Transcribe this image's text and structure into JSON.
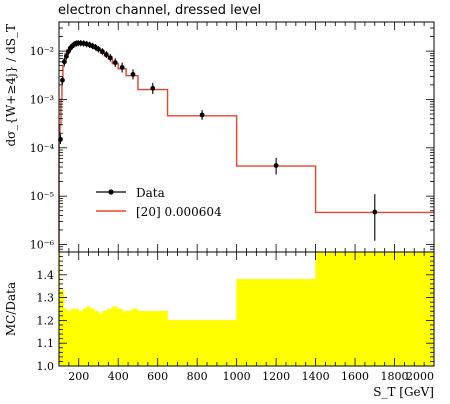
{
  "title": "electron channel, dressed level",
  "chart_data": [
    {
      "type": "line",
      "panel": "main",
      "ylabel": "dσ_{W+≥4j} / dS_T",
      "y_scale": "log",
      "ylim": [
        7e-07,
        0.04
      ],
      "xlim": [
        100,
        2000
      ],
      "yticks": [
        {
          "value": 1e-06,
          "label": "10⁻⁶"
        },
        {
          "value": 1e-05,
          "label": "10⁻⁵"
        },
        {
          "value": 0.0001,
          "label": "10⁻⁴"
        },
        {
          "value": 0.001,
          "label": "10⁻³"
        },
        {
          "value": 0.01,
          "label": "10⁻²"
        }
      ],
      "legend": {
        "placement": "lower-left",
        "entries": [
          "Data",
          "[20] 0.000604"
        ]
      },
      "series": [
        {
          "name": "Data",
          "style": "points",
          "color": "#000000",
          "points": [
            {
              "x": 107.5,
              "y": 0.00015,
              "ylo": 0.00012,
              "yhi": 0.00019
            },
            {
              "x": 117.5,
              "y": 0.0025,
              "ylo": 0.0021,
              "yhi": 0.003
            },
            {
              "x": 127.5,
              "y": 0.006,
              "ylo": 0.005,
              "yhi": 0.0072
            },
            {
              "x": 137.5,
              "y": 0.0078,
              "ylo": 0.0066,
              "yhi": 0.0093
            },
            {
              "x": 147.5,
              "y": 0.0098,
              "ylo": 0.0084,
              "yhi": 0.0115
            },
            {
              "x": 157.5,
              "y": 0.0115,
              "ylo": 0.0099,
              "yhi": 0.0134
            },
            {
              "x": 167.5,
              "y": 0.0128,
              "ylo": 0.011,
              "yhi": 0.0149
            },
            {
              "x": 177.5,
              "y": 0.0138,
              "ylo": 0.0119,
              "yhi": 0.016
            },
            {
              "x": 187.5,
              "y": 0.0144,
              "ylo": 0.0124,
              "yhi": 0.0167
            },
            {
              "x": 197.5,
              "y": 0.0146,
              "ylo": 0.0126,
              "yhi": 0.0169
            },
            {
              "x": 210,
              "y": 0.0146,
              "ylo": 0.0126,
              "yhi": 0.0169
            },
            {
              "x": 225,
              "y": 0.0144,
              "ylo": 0.0124,
              "yhi": 0.0167
            },
            {
              "x": 240,
              "y": 0.014,
              "ylo": 0.012,
              "yhi": 0.0163
            },
            {
              "x": 255,
              "y": 0.0135,
              "ylo": 0.0116,
              "yhi": 0.0157
            },
            {
              "x": 270,
              "y": 0.0128,
              "ylo": 0.011,
              "yhi": 0.0149
            },
            {
              "x": 285,
              "y": 0.012,
              "ylo": 0.0103,
              "yhi": 0.014
            },
            {
              "x": 300,
              "y": 0.011,
              "ylo": 0.0094,
              "yhi": 0.0128
            },
            {
              "x": 320,
              "y": 0.0098,
              "ylo": 0.0084,
              "yhi": 0.0115
            },
            {
              "x": 340,
              "y": 0.0085,
              "ylo": 0.0072,
              "yhi": 0.01
            },
            {
              "x": 360,
              "y": 0.0073,
              "ylo": 0.0061,
              "yhi": 0.0087
            },
            {
              "x": 385,
              "y": 0.0058,
              "ylo": 0.0047,
              "yhi": 0.0071
            },
            {
              "x": 420,
              "y": 0.0046,
              "ylo": 0.0036,
              "yhi": 0.0058
            },
            {
              "x": 475,
              "y": 0.0033,
              "ylo": 0.0026,
              "yhi": 0.0042
            },
            {
              "x": 575,
              "y": 0.0017,
              "ylo": 0.0013,
              "yhi": 0.0022
            },
            {
              "x": 825,
              "y": 0.00048,
              "ylo": 0.00038,
              "yhi": 0.0006
            },
            {
              "x": 1200,
              "y": 4.3e-05,
              "ylo": 2.8e-05,
              "yhi": 6.2e-05
            },
            {
              "x": 1700,
              "y": 4.7e-06,
              "ylo": 1.2e-06,
              "yhi": 1.1e-05
            }
          ]
        },
        {
          "name": "[20] 0.000604",
          "style": "histogram",
          "color": "#e8432a",
          "bins": [
            {
              "x0": 100,
              "x1": 105,
              "y": 0.00014
            },
            {
              "x0": 105,
              "x1": 110,
              "y": 0.0003
            },
            {
              "x0": 110,
              "x1": 115,
              "y": 0.001
            },
            {
              "x0": 115,
              "x1": 120,
              "y": 0.0025
            },
            {
              "x0": 120,
              "x1": 125,
              "y": 0.0048
            },
            {
              "x0": 125,
              "x1": 130,
              "y": 0.0068
            },
            {
              "x0": 130,
              "x1": 140,
              "y": 0.0088
            },
            {
              "x0": 140,
              "x1": 150,
              "y": 0.0105
            },
            {
              "x0": 150,
              "x1": 160,
              "y": 0.012
            },
            {
              "x0": 160,
              "x1": 170,
              "y": 0.0133
            },
            {
              "x0": 170,
              "x1": 180,
              "y": 0.0142
            },
            {
              "x0": 180,
              "x1": 190,
              "y": 0.0147
            },
            {
              "x0": 190,
              "x1": 205,
              "y": 0.0148
            },
            {
              "x0": 205,
              "x1": 215,
              "y": 0.0146
            },
            {
              "x0": 215,
              "x1": 230,
              "y": 0.0142
            },
            {
              "x0": 230,
              "x1": 245,
              "y": 0.0137
            },
            {
              "x0": 245,
              "x1": 260,
              "y": 0.013
            },
            {
              "x0": 260,
              "x1": 275,
              "y": 0.0122
            },
            {
              "x0": 275,
              "x1": 290,
              "y": 0.0113
            },
            {
              "x0": 290,
              "x1": 310,
              "y": 0.0103
            },
            {
              "x0": 310,
              "x1": 330,
              "y": 0.0091
            },
            {
              "x0": 330,
              "x1": 350,
              "y": 0.0079
            },
            {
              "x0": 350,
              "x1": 370,
              "y": 0.0068
            },
            {
              "x0": 370,
              "x1": 400,
              "y": 0.0055
            },
            {
              "x0": 400,
              "x1": 440,
              "y": 0.0043
            },
            {
              "x0": 440,
              "x1": 500,
              "y": 0.0031
            },
            {
              "x0": 500,
              "x1": 650,
              "y": 0.0016
            },
            {
              "x0": 650,
              "x1": 1000,
              "y": 0.00046
            },
            {
              "x0": 1000,
              "x1": 1400,
              "y": 4.2e-05
            },
            {
              "x0": 1400,
              "x1": 2000,
              "y": 4.6e-06
            }
          ]
        }
      ]
    },
    {
      "type": "area",
      "panel": "ratio",
      "ylabel": "MC/Data",
      "xlabel": "S_T [GeV]",
      "xlim": [
        100,
        2000
      ],
      "ylim": [
        1.0,
        1.5
      ],
      "xticks": [
        200,
        400,
        600,
        800,
        1000,
        1200,
        1400,
        1600,
        1800,
        2000
      ],
      "yticks": [
        1.0,
        1.1,
        1.2,
        1.3,
        1.4
      ],
      "fill_color": "#ffff00",
      "series": [
        {
          "name": "ratio band",
          "bins": [
            {
              "x0": 100,
              "x1": 105,
              "y": 1.5
            },
            {
              "x0": 105,
              "x1": 125,
              "y": 1.33
            },
            {
              "x0": 125,
              "x1": 140,
              "y": 1.25
            },
            {
              "x0": 140,
              "x1": 160,
              "y": 1.24
            },
            {
              "x0": 160,
              "x1": 180,
              "y": 1.25
            },
            {
              "x0": 180,
              "x1": 200,
              "y": 1.25
            },
            {
              "x0": 200,
              "x1": 220,
              "y": 1.24
            },
            {
              "x0": 220,
              "x1": 240,
              "y": 1.25
            },
            {
              "x0": 240,
              "x1": 260,
              "y": 1.26
            },
            {
              "x0": 260,
              "x1": 280,
              "y": 1.25
            },
            {
              "x0": 280,
              "x1": 300,
              "y": 1.24
            },
            {
              "x0": 300,
              "x1": 320,
              "y": 1.23
            },
            {
              "x0": 320,
              "x1": 345,
              "y": 1.24
            },
            {
              "x0": 345,
              "x1": 370,
              "y": 1.25
            },
            {
              "x0": 370,
              "x1": 395,
              "y": 1.26
            },
            {
              "x0": 395,
              "x1": 420,
              "y": 1.25
            },
            {
              "x0": 420,
              "x1": 445,
              "y": 1.24
            },
            {
              "x0": 445,
              "x1": 470,
              "y": 1.24
            },
            {
              "x0": 470,
              "x1": 500,
              "y": 1.25
            },
            {
              "x0": 500,
              "x1": 650,
              "y": 1.24
            },
            {
              "x0": 650,
              "x1": 1000,
              "y": 1.2
            },
            {
              "x0": 1000,
              "x1": 1400,
              "y": 1.38
            },
            {
              "x0": 1400,
              "x1": 2000,
              "y": 1.5
            }
          ]
        }
      ]
    }
  ]
}
